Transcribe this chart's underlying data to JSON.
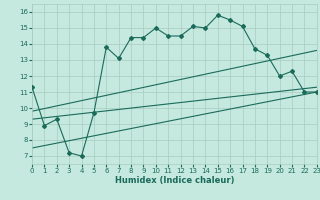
{
  "xlabel": "Humidex (Indice chaleur)",
  "xlim": [
    0,
    23
  ],
  "ylim": [
    6.5,
    16.5
  ],
  "xticks": [
    0,
    1,
    2,
    3,
    4,
    5,
    6,
    7,
    8,
    9,
    10,
    11,
    12,
    13,
    14,
    15,
    16,
    17,
    18,
    19,
    20,
    21,
    22,
    23
  ],
  "yticks": [
    7,
    8,
    9,
    10,
    11,
    12,
    13,
    14,
    15,
    16
  ],
  "bg_color": "#c5e8df",
  "line_color": "#1a6b5a",
  "grid_color": "#a8ccbe",
  "line1_x": [
    0,
    1,
    2,
    3,
    4,
    5,
    6,
    7,
    8,
    9,
    10,
    11,
    12,
    13,
    14,
    15,
    16,
    17,
    18,
    19,
    20,
    21,
    22,
    23
  ],
  "line1_y": [
    11.3,
    8.9,
    9.3,
    7.2,
    7.0,
    9.7,
    13.8,
    13.1,
    14.4,
    14.4,
    15.0,
    14.5,
    14.5,
    15.1,
    15.0,
    15.8,
    15.5,
    15.1,
    13.7,
    13.3,
    12.0,
    12.3,
    11.0,
    11.0
  ],
  "line2_x": [
    0,
    23
  ],
  "line2_y": [
    9.8,
    13.6
  ],
  "line3_x": [
    0,
    23
  ],
  "line3_y": [
    9.3,
    11.3
  ],
  "line4_x": [
    0,
    23
  ],
  "line4_y": [
    7.5,
    11.0
  ]
}
